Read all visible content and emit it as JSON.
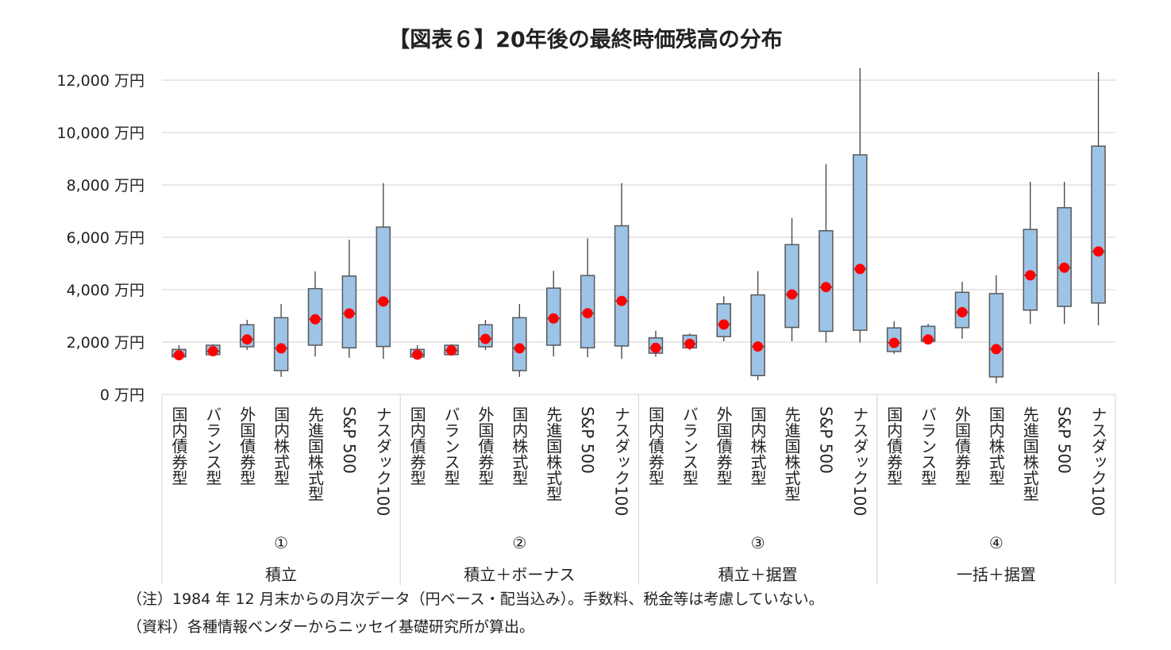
{
  "chart_data": {
    "type": "boxplot",
    "title": "【図表６】20年後の最終時価残高の分布",
    "y_tick_labels": [
      "0 万円",
      "2,000 万円",
      "4,000 万円",
      "6,000 万円",
      "8,000 万円",
      "10,000 万円",
      "12,000 万円"
    ],
    "y_ticks": [
      0,
      2000,
      4000,
      6000,
      8000,
      10000,
      12000
    ],
    "ylim": [
      0,
      12000
    ],
    "grid": true,
    "colors": {
      "box": "#9dc3e6",
      "box_edge": "#595959",
      "mean_dot": "#ff0000",
      "grid": "#d9d9d9"
    },
    "groups": [
      {
        "number": "①",
        "name": "積立",
        "items": [
          {
            "label": "国内債券型",
            "min": 1380,
            "q1": 1430,
            "median": 1500,
            "q3": 1720,
            "max": 1880
          },
          {
            "label": "バランス型",
            "min": 1480,
            "q1": 1520,
            "median": 1650,
            "q3": 1880,
            "max": 1920
          },
          {
            "label": "外国債券型",
            "min": 1700,
            "q1": 1820,
            "median": 2100,
            "q3": 2660,
            "max": 2850
          },
          {
            "label": "国内株式型",
            "min": 670,
            "q1": 910,
            "median": 1760,
            "q3": 2930,
            "max": 3450
          },
          {
            "label": "先進国株式型",
            "min": 1450,
            "q1": 1880,
            "median": 2870,
            "q3": 4040,
            "max": 4700
          },
          {
            "label": "S&P 500",
            "min": 1400,
            "q1": 1780,
            "median": 3090,
            "q3": 4520,
            "max": 5910
          },
          {
            "label": "ナスダック100",
            "min": 1360,
            "q1": 1830,
            "median": 3550,
            "q3": 6390,
            "max": 8070
          }
        ]
      },
      {
        "number": "②",
        "name": "積立＋ボーナス",
        "items": [
          {
            "label": "国内債券型",
            "min": 1380,
            "q1": 1430,
            "median": 1520,
            "q3": 1720,
            "max": 1880
          },
          {
            "label": "バランス型",
            "min": 1480,
            "q1": 1520,
            "median": 1680,
            "q3": 1880,
            "max": 1920
          },
          {
            "label": "外国債券型",
            "min": 1700,
            "q1": 1820,
            "median": 2120,
            "q3": 2660,
            "max": 2850
          },
          {
            "label": "国内株式型",
            "min": 670,
            "q1": 910,
            "median": 1760,
            "q3": 2930,
            "max": 3450
          },
          {
            "label": "先進国株式型",
            "min": 1450,
            "q1": 1880,
            "median": 2900,
            "q3": 4060,
            "max": 4720
          },
          {
            "label": "S&P 500",
            "min": 1420,
            "q1": 1780,
            "median": 3100,
            "q3": 4540,
            "max": 5960
          },
          {
            "label": "ナスダック100",
            "min": 1360,
            "q1": 1850,
            "median": 3570,
            "q3": 6440,
            "max": 8070
          }
        ]
      },
      {
        "number": "③",
        "name": "積立＋据置",
        "items": [
          {
            "label": "国内債券型",
            "min": 1440,
            "q1": 1575,
            "median": 1780,
            "q3": 2160,
            "max": 2430
          },
          {
            "label": "バランス型",
            "min": 1700,
            "q1": 1780,
            "median": 1930,
            "q3": 2260,
            "max": 2330
          },
          {
            "label": "外国債券型",
            "min": 2030,
            "q1": 2210,
            "median": 2670,
            "q3": 3460,
            "max": 3750
          },
          {
            "label": "国内株式型",
            "min": 540,
            "q1": 720,
            "median": 1830,
            "q3": 3800,
            "max": 4710
          },
          {
            "label": "先進国株式型",
            "min": 2030,
            "q1": 2560,
            "median": 3820,
            "q3": 5720,
            "max": 6730
          },
          {
            "label": "S&P 500",
            "min": 1980,
            "q1": 2410,
            "median": 4100,
            "q3": 6250,
            "max": 8800
          },
          {
            "label": "ナスダック100",
            "min": 1980,
            "q1": 2450,
            "median": 4790,
            "q3": 9150,
            "max": 12460
          }
        ]
      },
      {
        "number": "④",
        "name": "一括＋据置",
        "items": [
          {
            "label": "国内債券型",
            "min": 1550,
            "q1": 1640,
            "median": 1970,
            "q3": 2540,
            "max": 2800
          },
          {
            "label": "バランス型",
            "min": 2000,
            "q1": 2030,
            "median": 2100,
            "q3": 2600,
            "max": 2700
          },
          {
            "label": "外国債券型",
            "min": 2130,
            "q1": 2550,
            "median": 3140,
            "q3": 3900,
            "max": 4300
          },
          {
            "label": "国内株式型",
            "min": 430,
            "q1": 670,
            "median": 1730,
            "q3": 3850,
            "max": 4550
          },
          {
            "label": "先進国株式型",
            "min": 2690,
            "q1": 3220,
            "median": 4550,
            "q3": 6300,
            "max": 8120
          },
          {
            "label": "S&P 500",
            "min": 2690,
            "q1": 3360,
            "median": 4840,
            "q3": 7130,
            "max": 8120
          },
          {
            "label": "ナスダック100",
            "min": 2640,
            "q1": 3490,
            "median": 5460,
            "q3": 9480,
            "max": 12310
          }
        ]
      }
    ]
  },
  "notes": [
    "（注）1984 年 12 月末からの月次データ（円ベース・配当込み）。手数料、税金等は考慮していない。",
    "（資料）各種情報ベンダーからニッセイ基礎研究所が算出。"
  ]
}
